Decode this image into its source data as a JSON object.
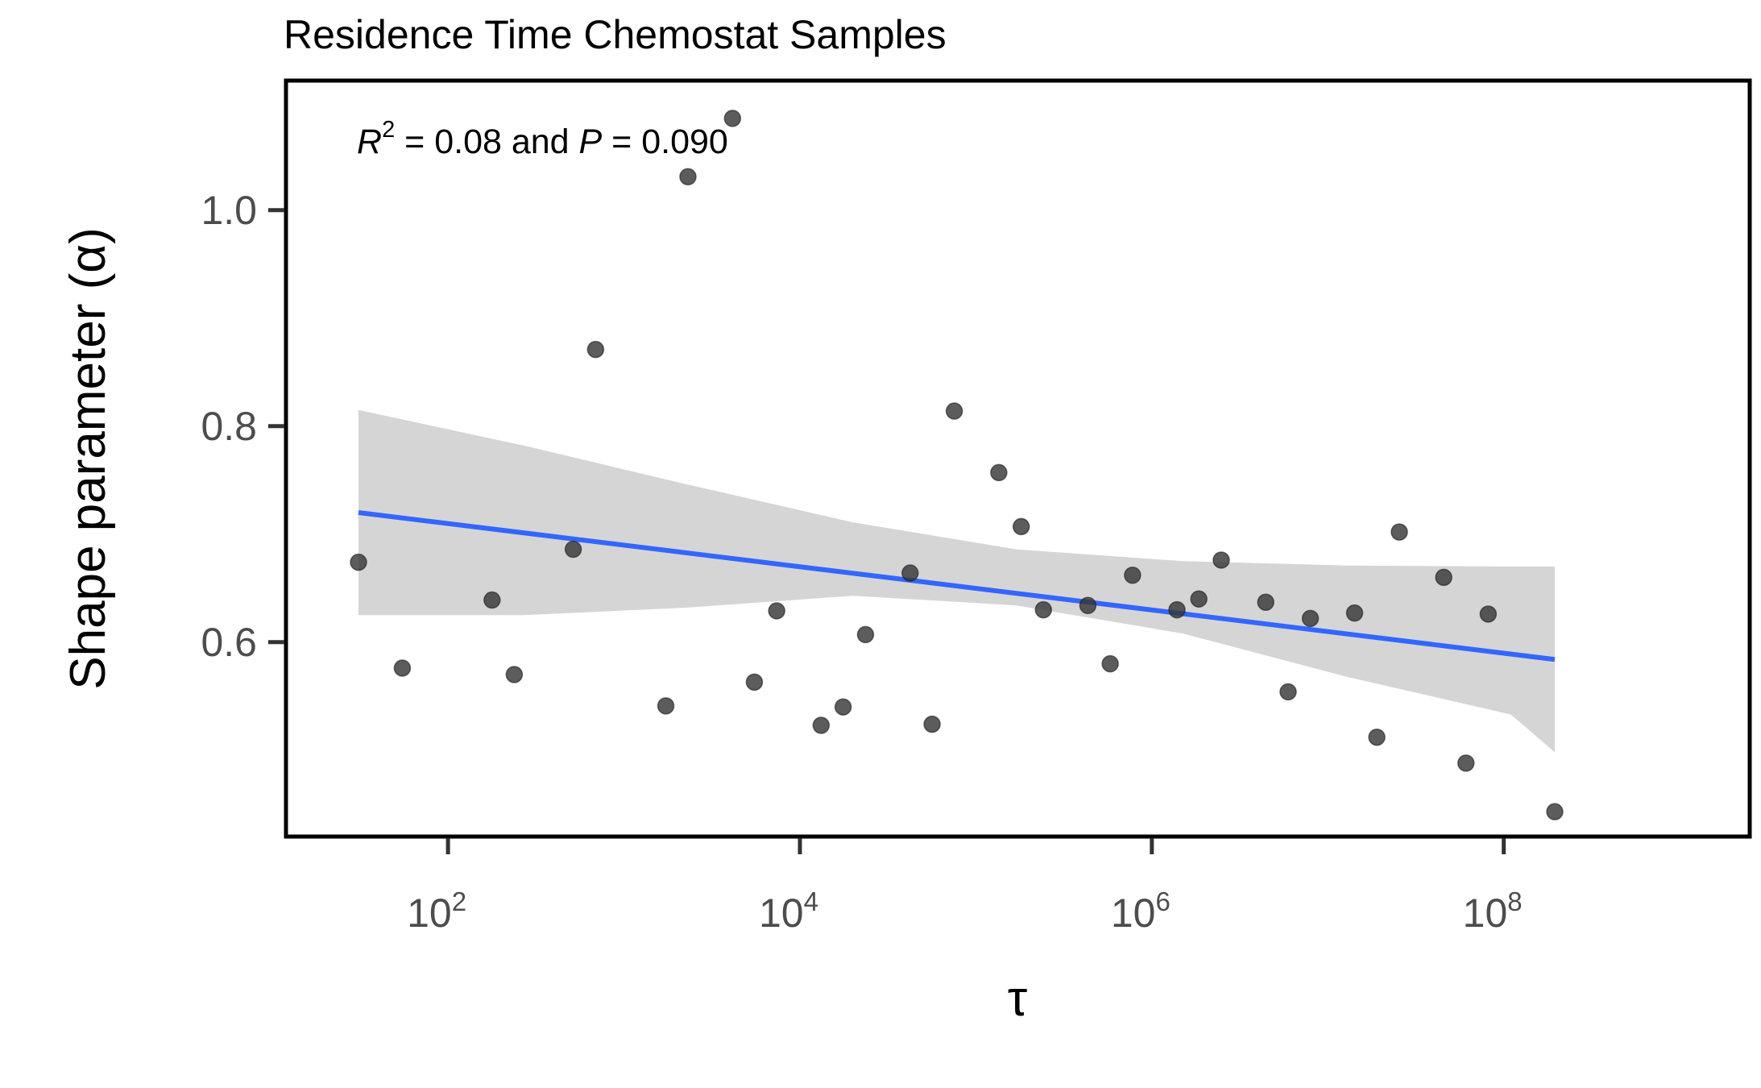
{
  "chart_data": {
    "type": "scatter",
    "title": "Residence Time Chemostat Samples",
    "xlabel": "τ",
    "ylabel": "Shape parameter (α)",
    "x_scale": "log10",
    "xlim": [
      12,
      2500000000
    ],
    "ylim": [
      0.42,
      1.12
    ],
    "x_ticks": [
      {
        "value": 100,
        "base": "10",
        "exp": "2"
      },
      {
        "value": 10000,
        "base": "10",
        "exp": "4"
      },
      {
        "value": 1000000,
        "base": "10",
        "exp": "6"
      },
      {
        "value": 100000000,
        "base": "10",
        "exp": "8"
      }
    ],
    "y_ticks": [
      {
        "value": 0.6,
        "label": "0.6"
      },
      {
        "value": 0.8,
        "label": "0.8"
      },
      {
        "value": 1.0,
        "label": "1.0"
      }
    ],
    "annotation": {
      "r_symbol": "R",
      "r_exp": "2",
      "r_text": " = 0.08 and ",
      "p_symbol": "P",
      "p_text": " = 0.090"
    },
    "points": [
      {
        "x": 31,
        "y": 0.674
      },
      {
        "x": 55,
        "y": 0.576
      },
      {
        "x": 178,
        "y": 0.639
      },
      {
        "x": 238,
        "y": 0.57
      },
      {
        "x": 515,
        "y": 0.686
      },
      {
        "x": 690,
        "y": 0.871
      },
      {
        "x": 1730,
        "y": 0.541
      },
      {
        "x": 2310,
        "y": 1.031
      },
      {
        "x": 4140,
        "y": 1.085
      },
      {
        "x": 5510,
        "y": 0.563
      },
      {
        "x": 7380,
        "y": 0.629
      },
      {
        "x": 13200,
        "y": 0.523
      },
      {
        "x": 17600,
        "y": 0.54
      },
      {
        "x": 23600,
        "y": 0.607
      },
      {
        "x": 42300,
        "y": 0.664
      },
      {
        "x": 56400,
        "y": 0.524
      },
      {
        "x": 75400,
        "y": 0.814
      },
      {
        "x": 135000,
        "y": 0.757
      },
      {
        "x": 181000,
        "y": 0.707
      },
      {
        "x": 242000,
        "y": 0.63
      },
      {
        "x": 433000,
        "y": 0.634
      },
      {
        "x": 580000,
        "y": 0.58
      },
      {
        "x": 777000,
        "y": 0.662
      },
      {
        "x": 1390000,
        "y": 0.63
      },
      {
        "x": 1850000,
        "y": 0.64
      },
      {
        "x": 2480000,
        "y": 0.676
      },
      {
        "x": 4440000,
        "y": 0.637
      },
      {
        "x": 5950000,
        "y": 0.554
      },
      {
        "x": 7960000,
        "y": 0.622
      },
      {
        "x": 14200000,
        "y": 0.627
      },
      {
        "x": 19000000,
        "y": 0.512
      },
      {
        "x": 25500000,
        "y": 0.702
      },
      {
        "x": 45600000,
        "y": 0.66
      },
      {
        "x": 61000000,
        "y": 0.488
      },
      {
        "x": 81600000,
        "y": 0.626
      },
      {
        "x": 195000000,
        "y": 0.443
      }
    ],
    "fit_line": {
      "x": [
        31,
        195000000
      ],
      "y": [
        0.72,
        0.584
      ],
      "ci_lower": [
        0.625,
        0.625,
        0.632,
        0.643,
        0.634,
        0.608,
        0.568,
        0.533,
        0.498
      ],
      "ci_upper": [
        0.815,
        0.782,
        0.746,
        0.711,
        0.686,
        0.675,
        0.671,
        0.67,
        0.67
      ],
      "ci_x": [
        31,
        270,
        2300,
        20000,
        170000,
        1500000,
        12800000,
        110000000,
        195000000
      ]
    },
    "colors": {
      "points": "#333333",
      "fit_line": "#3366ff",
      "ci_band": "#d5d5d5",
      "panel_border": "#000000",
      "axis_ticks": "#333333"
    },
    "grid": false,
    "legend": "none"
  }
}
